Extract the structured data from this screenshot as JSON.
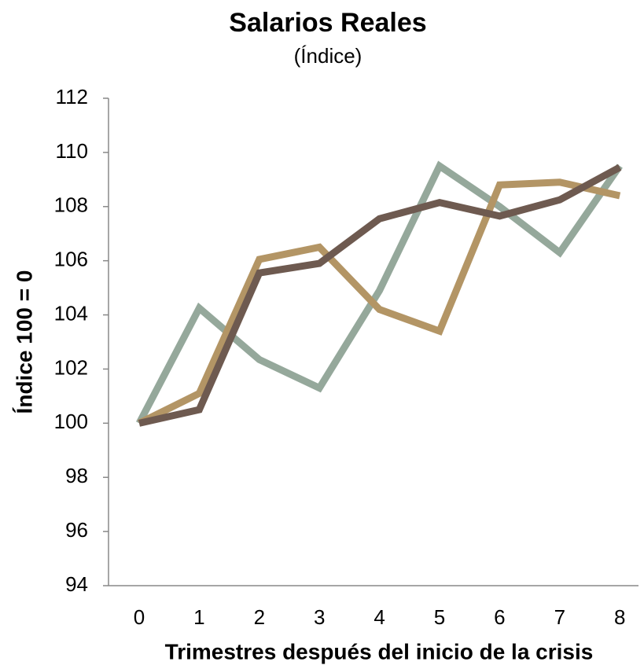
{
  "chart_data": {
    "type": "line",
    "title": "Salarios Reales",
    "subtitle": "(Índice)",
    "x_label": "Trimestres después del inicio de la crisis",
    "y_label": "Índice 100 = 0",
    "categories": [
      "0",
      "1",
      "2",
      "3",
      "4",
      "5",
      "6",
      "7",
      "8"
    ],
    "series": [
      {
        "color": "#95a89b",
        "values": [
          100,
          104.25,
          102.35,
          101.3,
          104.9,
          109.5,
          108.0,
          106.3,
          109.5
        ]
      },
      {
        "color": "#b39565",
        "values": [
          100,
          101.1,
          106.05,
          106.5,
          104.2,
          103.4,
          108.8,
          108.9,
          108.4
        ]
      },
      {
        "color": "#6e5a50",
        "values": [
          100,
          100.5,
          105.55,
          105.9,
          107.55,
          108.15,
          107.65,
          108.25,
          109.45
        ]
      }
    ],
    "ylim": [
      94,
      112
    ],
    "yticks": [
      94,
      96,
      98,
      100,
      102,
      104,
      106,
      108,
      110,
      112
    ]
  }
}
